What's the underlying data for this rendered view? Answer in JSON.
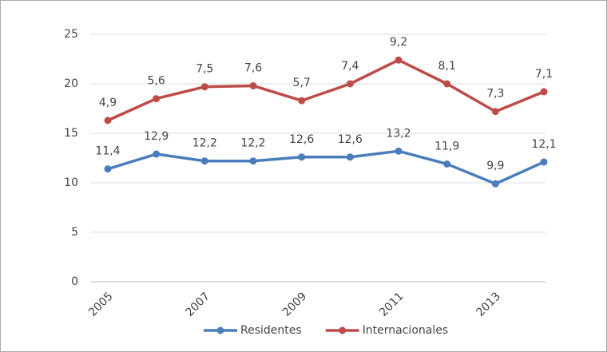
{
  "chart_data": {
    "type": "line",
    "stacked": true,
    "categories": [
      "2005",
      null,
      "2007",
      null,
      "2009",
      null,
      "2011",
      null,
      "2013",
      null
    ],
    "series": [
      {
        "name": "Residentes",
        "color": "#4a7ebb",
        "values": [
          11.4,
          12.9,
          12.2,
          12.2,
          12.6,
          12.6,
          13.2,
          11.9,
          9.9,
          12.1
        ],
        "value_labels": [
          "11,4",
          "12,9",
          "12,2",
          "12,2",
          "12,6",
          "12,6",
          "13,2",
          "11,9",
          "9,9",
          "12,1"
        ]
      },
      {
        "name": "Internacionales",
        "color": "#be4b48",
        "values": [
          4.9,
          5.6,
          7.5,
          7.6,
          5.7,
          7.4,
          9.2,
          8.1,
          7.3,
          7.1
        ],
        "value_labels": [
          "4,9",
          "5,6",
          "7,5",
          "7,6",
          "5,7",
          "7,4",
          "9,2",
          "8,1",
          "7,3",
          "7,1"
        ]
      }
    ],
    "ylim": [
      0,
      25
    ],
    "yticks": [
      0,
      5,
      10,
      15,
      20,
      25
    ],
    "grid": true,
    "legend": "bottom"
  }
}
